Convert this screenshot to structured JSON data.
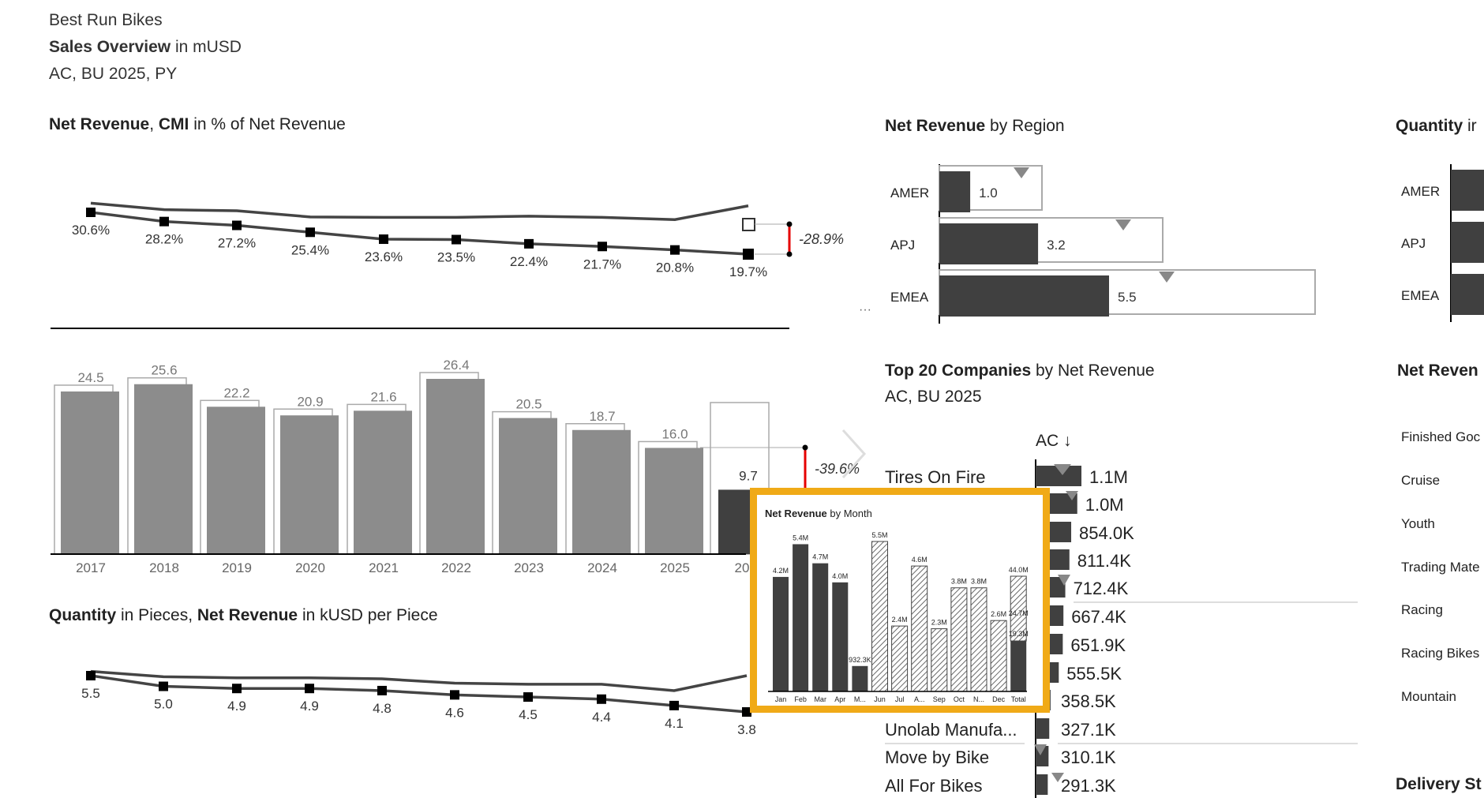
{
  "header": {
    "company": "Best Run Bikes",
    "title_bold": "Sales Overview",
    "title_rest": " in mUSD",
    "scenario": "AC, BU 2025, PY"
  },
  "cmi_chart": {
    "title_bold1": "Net Revenue",
    "title_sep": ", ",
    "title_bold2": "CMI",
    "title_rest": " in % of Net Revenue",
    "delta_label": "-28.9%",
    "chart_data": {
      "type": "line",
      "x": [
        "2017",
        "2018",
        "2019",
        "2020",
        "2021",
        "2022",
        "2023",
        "2024",
        "2025",
        "2026"
      ],
      "series": [
        {
          "values": [
            30.6,
            28.2,
            27.2,
            25.4,
            23.6,
            23.5,
            22.4,
            21.7,
            20.8,
            19.7
          ],
          "labels": [
            "30.6%",
            "28.2%",
            "27.2%",
            "25.4%",
            "23.6%",
            "23.5%",
            "22.4%",
            "21.7%",
            "20.8%",
            "19.7%"
          ]
        }
      ]
    }
  },
  "revenue_chart": {
    "delta_label": "-39.6%",
    "chart_data": {
      "type": "bar",
      "categories": [
        "2017",
        "2018",
        "2019",
        "2020",
        "2021",
        "2022",
        "2023",
        "2024",
        "2025",
        "2026"
      ],
      "values": [
        24.5,
        25.6,
        22.2,
        20.9,
        21.6,
        26.4,
        20.5,
        18.7,
        16.0,
        9.7
      ],
      "labels": [
        "24.5",
        "25.6",
        "22.2",
        "20.9",
        "21.6",
        "26.4",
        "20.5",
        "18.7",
        "16.0",
        "9.7"
      ]
    }
  },
  "quantity_chart": {
    "title_bold1": "Quantity",
    "title_mid": " in Pieces, ",
    "title_bold2": "Net Revenue",
    "title_rest": " in kUSD per Piece",
    "chart_data": {
      "type": "line",
      "x": [
        "2017",
        "2018",
        "2019",
        "2020",
        "2021",
        "2022",
        "2023",
        "2024",
        "2025",
        "2026"
      ],
      "series": [
        {
          "values": [
            5.5,
            5.0,
            4.9,
            4.9,
            4.8,
            4.6,
            4.5,
            4.4,
            4.1,
            3.8
          ],
          "labels": [
            "5.5",
            "5.0",
            "4.9",
            "4.9",
            "4.8",
            "4.6",
            "4.5",
            "4.4",
            "4.1",
            "3.8"
          ]
        }
      ]
    }
  },
  "region_chart": {
    "title_bold": "Net Revenue",
    "title_rest": " by Region",
    "chart_data": {
      "type": "bar",
      "categories": [
        "AMER",
        "APJ",
        "EMEA"
      ],
      "values": [
        1.0,
        3.2,
        5.5
      ],
      "labels": [
        "1.0",
        "3.2",
        "5.5"
      ]
    }
  },
  "quantity_region": {
    "title_bold": "Quantity",
    "title_rest": " ir",
    "categories": [
      "AMER",
      "APJ",
      "EMEA"
    ]
  },
  "top_companies": {
    "title_bold": "Top 20 Companies",
    "title_rest": " by Net Revenue",
    "subtitle": "AC, BU 2025",
    "column_header": "AC ↓",
    "chart_data": {
      "type": "bar",
      "categories": [
        "Tires On Fire",
        "",
        "",
        "",
        "",
        "",
        "",
        "",
        "",
        "Unolab Manufa...",
        "Move by Bike",
        "All For Bikes"
      ],
      "values": [
        1100,
        1000,
        854.0,
        811.4,
        712.4,
        667.4,
        651.9,
        555.5,
        358.5,
        327.1,
        310.1,
        291.3
      ],
      "labels": [
        "1.1M",
        "1.0M",
        "854.0K",
        "811.4K",
        "712.4K",
        "667.4K",
        "651.9K",
        "555.5K",
        "358.5K",
        "327.1K",
        "310.1K",
        "291.3K"
      ]
    }
  },
  "net_revenue_product": {
    "title": "Net Reven",
    "categories": [
      "Finished Goc",
      "Cruise",
      "Youth",
      "Trading Mate",
      "Racing",
      "Racing Bikes",
      "Mountain"
    ]
  },
  "delivery": {
    "title": "Delivery St"
  },
  "tooltip_chart": {
    "title_bold": "Net Revenue",
    "title_rest": " by Month",
    "chart_data": {
      "type": "bar",
      "categories": [
        "Jan",
        "Feb",
        "Mar",
        "Apr",
        "M...",
        "Jun",
        "Jul",
        "A...",
        "Sep",
        "Oct",
        "N...",
        "Dec",
        "Total"
      ],
      "values": [
        4.2,
        5.4,
        4.7,
        4.0,
        0.9323,
        5.5,
        2.4,
        4.6,
        2.3,
        3.8,
        3.8,
        2.6,
        44.0
      ],
      "labels": [
        "4.2M",
        "5.4M",
        "4.7M",
        "4.0M",
        "932.3K",
        "5.5M",
        "2.4M",
        "4.6M",
        "2.3M",
        "3.8M",
        "3.8M",
        "2.6M",
        "44.0M"
      ],
      "total_breakdown": [
        "24.7M",
        "19.3M"
      ]
    }
  },
  "colors": {
    "bar_dark": "#404040",
    "bar_mid": "#8c8c8c",
    "highlight_border": "#f0aa17",
    "delta_red": "#e60000"
  }
}
